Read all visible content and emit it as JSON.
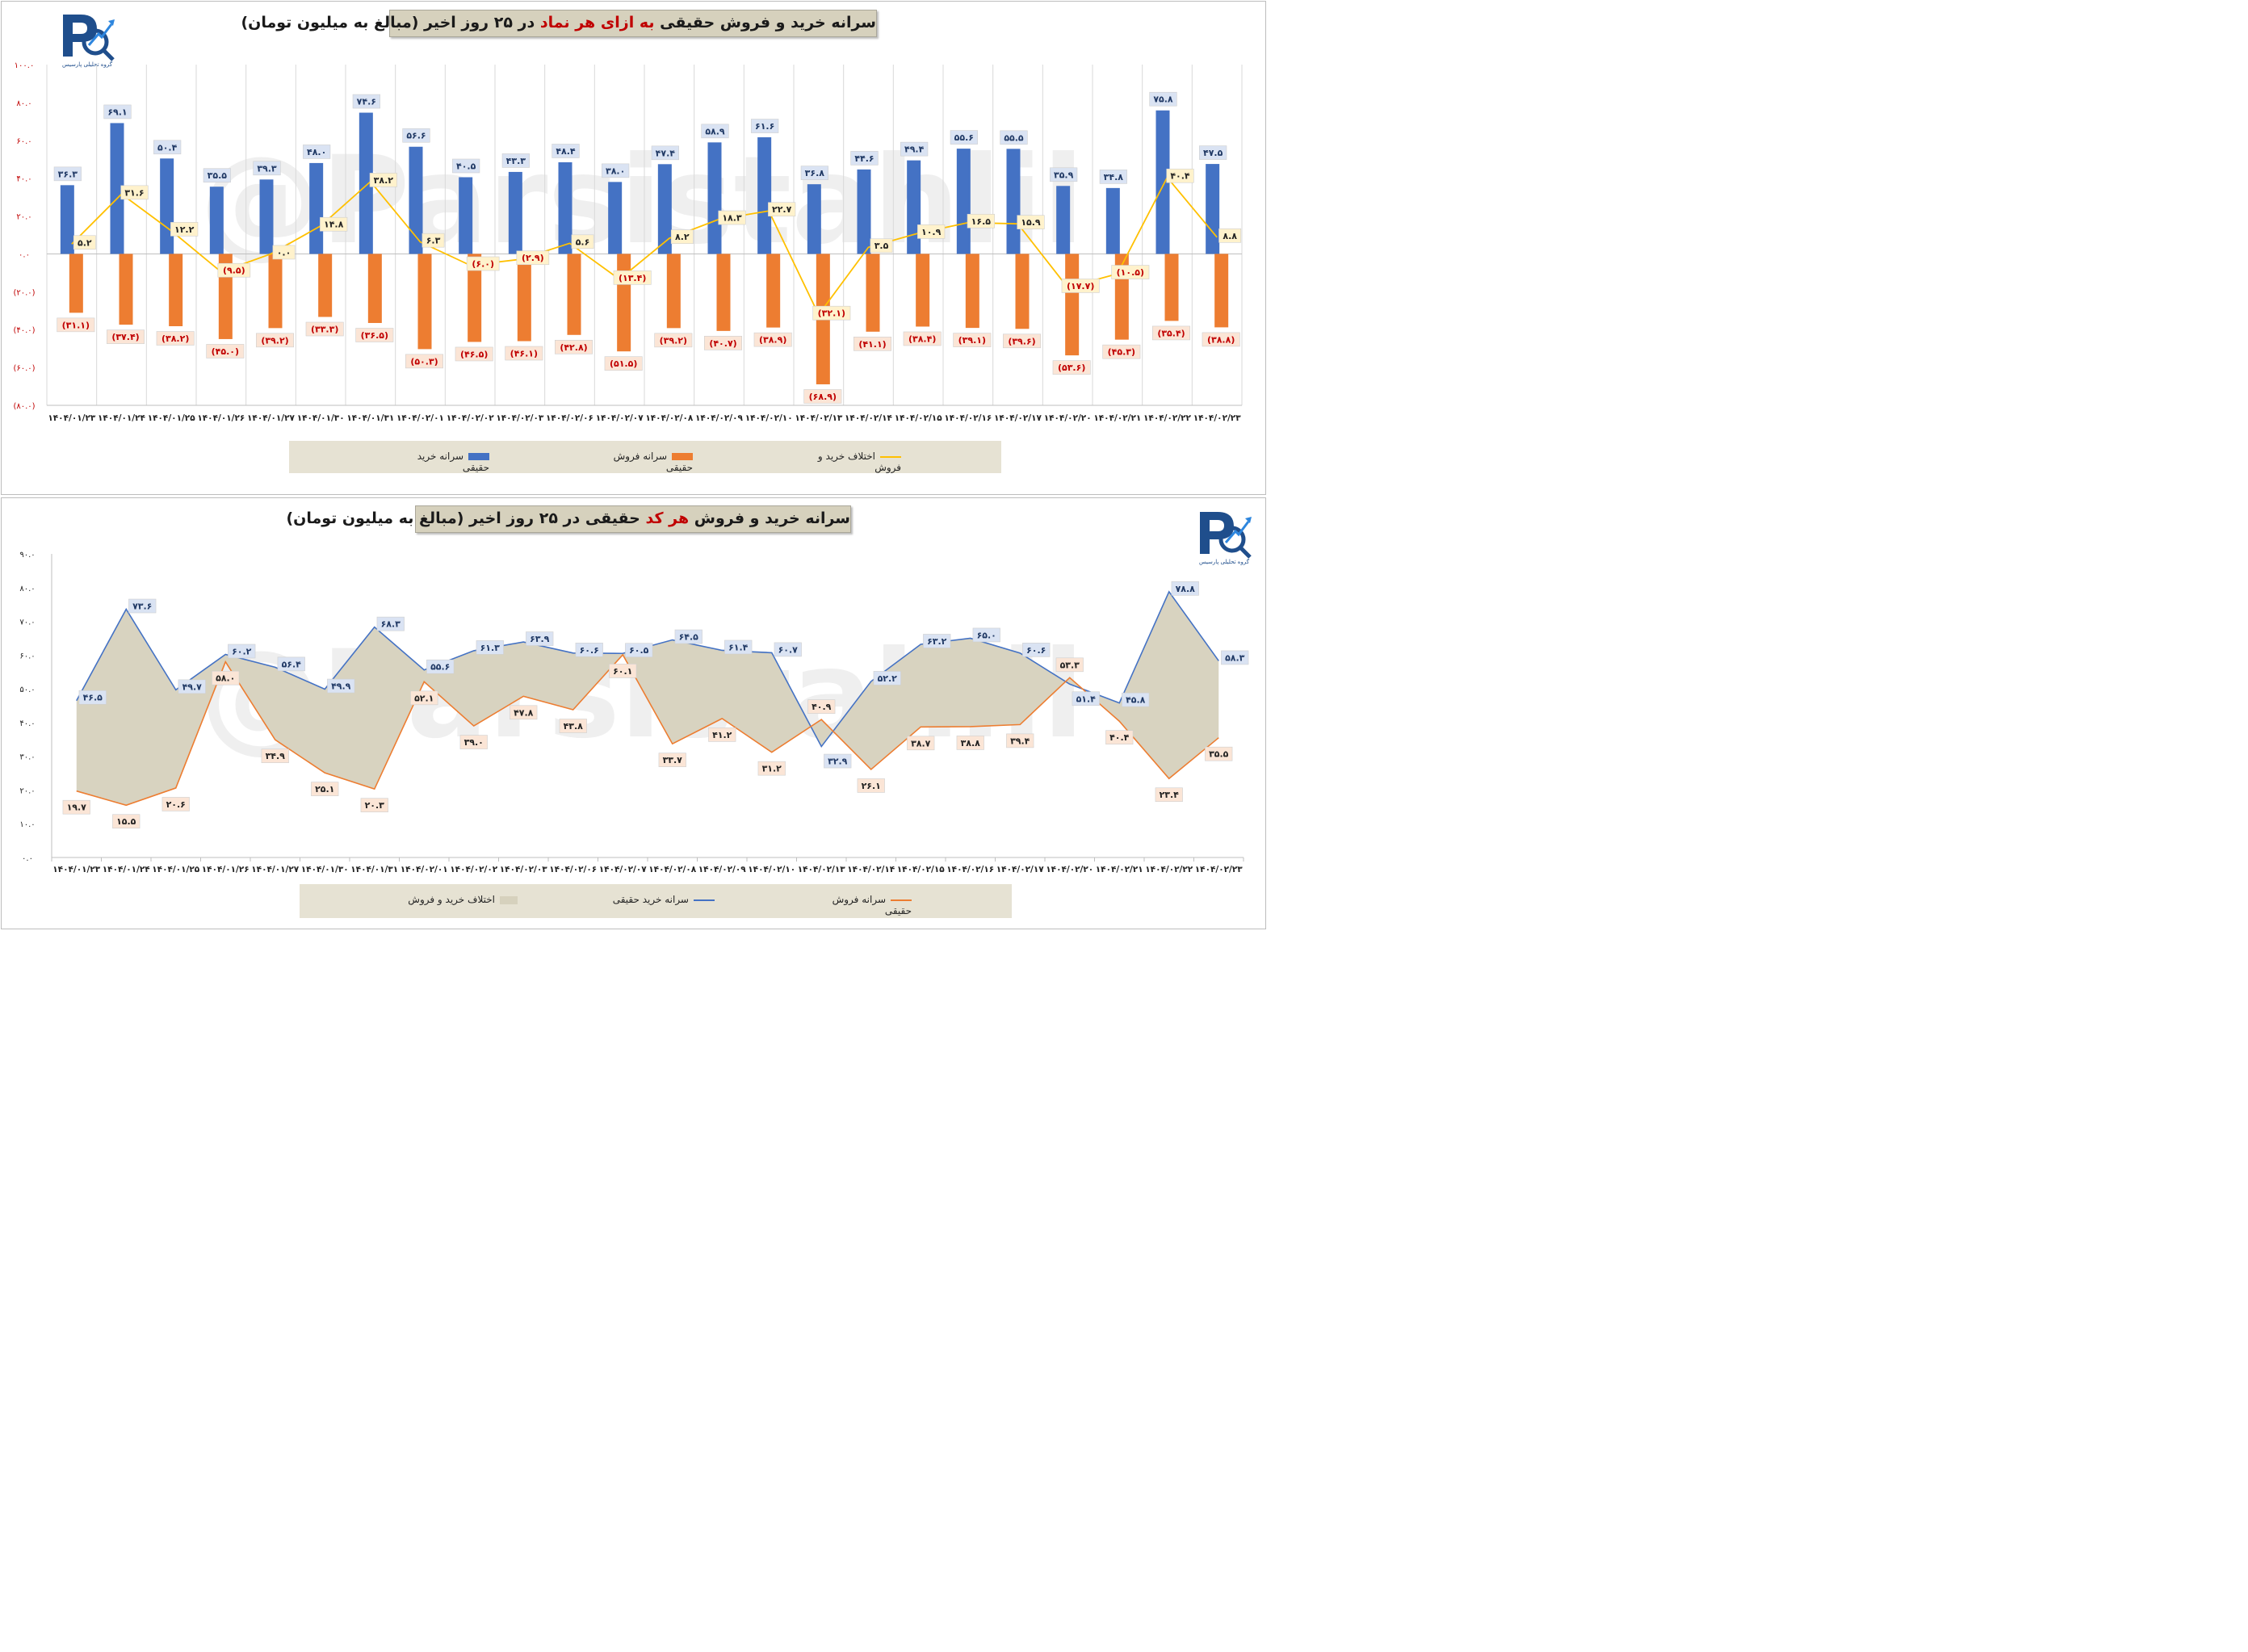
{
  "chart_data": [
    {
      "type": "bar",
      "title_parts": [
        "سرانه خرید و فروش حقیقی ",
        "به ازای هر نماد",
        " در ۲۵ روز اخیر (مبالغ به میلیون تومان)"
      ],
      "categories": [
        "۱۴۰۴/۰۱/۲۳",
        "۱۴۰۴/۰۱/۲۴",
        "۱۴۰۴/۰۱/۲۵",
        "۱۴۰۴/۰۱/۲۶",
        "۱۴۰۴/۰۱/۲۷",
        "۱۴۰۴/۰۱/۳۰",
        "۱۴۰۴/۰۱/۳۱",
        "۱۴۰۴/۰۲/۰۱",
        "۱۴۰۴/۰۲/۰۲",
        "۱۴۰۴/۰۲/۰۳",
        "۱۴۰۴/۰۲/۰۶",
        "۱۴۰۴/۰۲/۰۷",
        "۱۴۰۴/۰۲/۰۸",
        "۱۴۰۴/۰۲/۰۹",
        "۱۴۰۴/۰۲/۱۰",
        "۱۴۰۴/۰۲/۱۳",
        "۱۴۰۴/۰۲/۱۴",
        "۱۴۰۴/۰۲/۱۵",
        "۱۴۰۴/۰۲/۱۶",
        "۱۴۰۴/۰۲/۱۷",
        "۱۴۰۴/۰۲/۲۰",
        "۱۴۰۴/۰۲/۲۱",
        "۱۴۰۴/۰۲/۲۲",
        "۱۴۰۴/۰۲/۲۳"
      ],
      "ylim": [
        -80,
        100
      ],
      "yticks": [
        100,
        80,
        60,
        40,
        20,
        0,
        -20,
        -40,
        -60,
        -80
      ],
      "ytick_labels": [
        "۱۰۰.۰",
        "۸۰.۰",
        "۶۰.۰",
        "۴۰.۰",
        "۲۰.۰",
        "۰.۰",
        "(۲۰.۰)",
        "(۴۰.۰)",
        "(۶۰.۰)",
        "(۸۰.۰)"
      ],
      "series": [
        {
          "name": "سرانه خرید حقیقی",
          "color": "#4472c4",
          "values": [
            36.3,
            69.1,
            50.4,
            35.5,
            39.3,
            48.0,
            74.6,
            56.6,
            40.5,
            43.3,
            48.4,
            38.0,
            47.4,
            58.9,
            61.6,
            36.8,
            44.6,
            49.4,
            55.6,
            55.5,
            35.9,
            34.8,
            75.8,
            47.5
          ],
          "labels": [
            "۳۶.۳",
            "۶۹.۱",
            "۵۰.۴",
            "۳۵.۵",
            "۳۹.۳",
            "۴۸.۰",
            "۷۴.۶",
            "۵۶.۶",
            "۴۰.۵",
            "۴۳.۳",
            "۴۸.۴",
            "۳۸.۰",
            "۴۷.۴",
            "۵۸.۹",
            "۶۱.۶",
            "۳۶.۸",
            "۴۴.۶",
            "۴۹.۴",
            "۵۵.۶",
            "۵۵.۵",
            "۳۵.۹",
            "۳۴.۸",
            "۷۵.۸",
            "۴۷.۵"
          ]
        },
        {
          "name": "سرانه فروش حقیقی",
          "color": "#ed7d31",
          "values": [
            -31.1,
            -37.4,
            -38.2,
            -45.0,
            -39.2,
            -33.3,
            -36.5,
            -50.3,
            -46.5,
            -46.1,
            -42.8,
            -51.5,
            -39.2,
            -40.7,
            -38.9,
            -68.9,
            -41.1,
            -38.4,
            -39.1,
            -39.6,
            -53.6,
            -45.3,
            -35.4,
            -38.8
          ],
          "labels": [
            "(۳۱.۱)",
            "(۳۷.۴)",
            "(۳۸.۲)",
            "(۴۵.۰)",
            "(۳۹.۲)",
            "(۳۳.۳)",
            "(۳۶.۵)",
            "(۵۰.۳)",
            "(۴۶.۵)",
            "(۴۶.۱)",
            "(۴۲.۸)",
            "(۵۱.۵)",
            "(۳۹.۲)",
            "(۴۰.۷)",
            "(۳۸.۹)",
            "(۶۸.۹)",
            "(۴۱.۱)",
            "(۳۸.۴)",
            "(۳۹.۱)",
            "(۳۹.۶)",
            "(۵۳.۶)",
            "(۴۵.۳)",
            "(۳۵.۴)",
            "(۳۸.۸)"
          ]
        },
        {
          "name": "اختلاف خرید و فروش",
          "type": "line",
          "color": "#ffc000",
          "values": [
            5.2,
            31.6,
            12.2,
            -9.5,
            0.0,
            14.8,
            38.2,
            6.3,
            -6.0,
            -2.9,
            5.6,
            -13.4,
            8.2,
            18.3,
            22.7,
            -32.1,
            3.5,
            10.9,
            16.5,
            15.9,
            -17.7,
            -10.5,
            40.4,
            8.8
          ],
          "labels": [
            "۵.۲",
            "۳۱.۶",
            "۱۲.۲",
            "(۹.۵)",
            "۰.۰",
            "۱۴.۸",
            "۳۸.۲",
            "۶.۳",
            "(۶.۰)",
            "(۲.۹)",
            "۵.۶",
            "(۱۳.۴)",
            "۸.۲",
            "۱۸.۳",
            "۲۲.۷",
            "(۳۲.۱)",
            "۳.۵",
            "۱۰.۹",
            "۱۶.۵",
            "۱۵.۹",
            "(۱۷.۷)",
            "(۱۰.۵)",
            "۴۰.۴",
            "۸.۸"
          ]
        }
      ],
      "legend_position": "bottom"
    },
    {
      "type": "area",
      "title_parts": [
        "سرانه خرید و فروش ",
        "هر کد",
        " حقیقی در ۲۵ روز اخیر (مبالغ به میلیون تومان)"
      ],
      "categories": [
        "۱۴۰۴/۰۱/۲۳",
        "۱۴۰۴/۰۱/۲۴",
        "۱۴۰۴/۰۱/۲۵",
        "۱۴۰۴/۰۱/۲۶",
        "۱۴۰۴/۰۱/۲۷",
        "۱۴۰۴/۰۱/۳۰",
        "۱۴۰۴/۰۱/۳۱",
        "۱۴۰۴/۰۲/۰۱",
        "۱۴۰۴/۰۲/۰۲",
        "۱۴۰۴/۰۲/۰۳",
        "۱۴۰۴/۰۲/۰۶",
        "۱۴۰۴/۰۲/۰۷",
        "۱۴۰۴/۰۲/۰۸",
        "۱۴۰۴/۰۲/۰۹",
        "۱۴۰۴/۰۲/۱۰",
        "۱۴۰۴/۰۲/۱۳",
        "۱۴۰۴/۰۲/۱۴",
        "۱۴۰۴/۰۲/۱۵",
        "۱۴۰۴/۰۲/۱۶",
        "۱۴۰۴/۰۲/۱۷",
        "۱۴۰۴/۰۲/۲۰",
        "۱۴۰۴/۰۲/۲۱",
        "۱۴۰۴/۰۲/۲۲",
        "۱۴۰۴/۰۲/۲۳"
      ],
      "ylim": [
        0,
        90
      ],
      "yticks": [
        90,
        80,
        70,
        60,
        50,
        40,
        30,
        20,
        10,
        0
      ],
      "ytick_labels": [
        "۹۰.۰",
        "۸۰.۰",
        "۷۰.۰",
        "۶۰.۰",
        "۵۰.۰",
        "۴۰.۰",
        "۳۰.۰",
        "۲۰.۰",
        "۱۰.۰",
        "۰.۰"
      ],
      "series": [
        {
          "name": "سرانه خرید حقیقی",
          "color": "#4472c4",
          "values": [
            46.5,
            73.6,
            49.7,
            60.2,
            56.4,
            49.9,
            68.3,
            55.6,
            61.3,
            63.9,
            60.6,
            60.5,
            64.5,
            61.4,
            60.7,
            32.9,
            52.2,
            63.2,
            65.0,
            60.6,
            51.4,
            45.8,
            78.8,
            58.3
          ],
          "labels": [
            "۴۶.۵",
            "۷۳.۶",
            "۴۹.۷",
            "۶۰.۲",
            "۵۶.۴",
            "۴۹.۹",
            "۶۸.۳",
            "۵۵.۶",
            "۶۱.۳",
            "۶۳.۹",
            "۶۰.۶",
            "۶۰.۵",
            "۶۴.۵",
            "۶۱.۴",
            "۶۰.۷",
            "۳۲.۹",
            "۵۲.۲",
            "۶۳.۲",
            "۶۵.۰",
            "۶۰.۶",
            "۵۱.۴",
            "۴۵.۸",
            "۷۸.۸",
            "۵۸.۳"
          ]
        },
        {
          "name": "سرانه فروش حقیقی",
          "color": "#ed7d31",
          "values": [
            19.7,
            15.5,
            20.6,
            58.0,
            34.9,
            25.1,
            20.3,
            52.1,
            39.0,
            47.8,
            43.8,
            60.1,
            33.7,
            41.2,
            31.2,
            40.9,
            26.1,
            38.7,
            38.8,
            39.4,
            53.3,
            40.4,
            23.4,
            35.5
          ],
          "labels": [
            "۱۹.۷",
            "۱۵.۵",
            "۲۰.۶",
            "۵۸.۰",
            "۳۴.۹",
            "۲۵.۱",
            "۲۰.۳",
            "۵۲.۱",
            "۳۹.۰",
            "۴۷.۸",
            "۴۳.۸",
            "۶۰.۱",
            "۳۳.۷",
            "۴۱.۲",
            "۳۱.۲",
            "۴۰.۹",
            "۲۶.۱",
            "۳۸.۷",
            "۳۸.۸",
            "۳۹.۴",
            "۵۳.۳",
            "۴۰.۴",
            "۲۳.۴",
            "۳۵.۵"
          ]
        }
      ],
      "diff_legend": "اختلاف خرید و فروش",
      "area_color": "#d6d1bd",
      "legend_position": "bottom"
    }
  ],
  "logo": {
    "text": "گروه تحلیلی پارسیس"
  },
  "watermark": "@Parsistahlil"
}
